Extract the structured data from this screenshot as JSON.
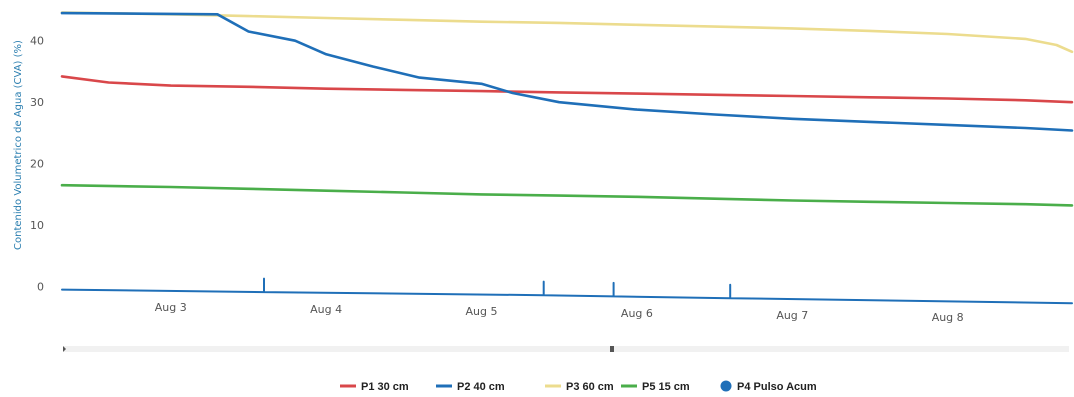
{
  "chart_data": {
    "type": "line",
    "title": "",
    "ylabel": "Contenido Volumetrico de Agua (CVA) (%)",
    "xlabel": "",
    "x_tick_labels": [
      "Aug 3",
      "Aug 4",
      "Aug 5",
      "Aug 6",
      "Aug 7",
      "Aug 8"
    ],
    "x_tick_values": [
      1,
      2,
      3,
      4,
      5,
      6
    ],
    "xlim": [
      0.3,
      6.8
    ],
    "y_tick_labels": [
      "0",
      "10",
      "20",
      "30",
      "40"
    ],
    "y_tick_values": [
      0,
      10,
      20,
      30,
      40
    ],
    "ylim": [
      -3,
      45
    ],
    "grid": false,
    "legend_position": "bottom",
    "series": [
      {
        "name": "P1 30 cm",
        "color": "#d9474a",
        "x": [
          0.3,
          0.6,
          1.0,
          1.5,
          2.0,
          2.5,
          3.0,
          3.5,
          4.0,
          4.5,
          5.0,
          5.5,
          6.0,
          6.5,
          6.8
        ],
        "y": [
          34.2,
          33.2,
          32.7,
          32.5,
          32.2,
          32.0,
          31.8,
          31.6,
          31.4,
          31.2,
          31.0,
          30.8,
          30.6,
          30.3,
          30.0
        ]
      },
      {
        "name": "P2 40 cm",
        "color": "#1f6fb8",
        "x": [
          0.3,
          1.3,
          1.5,
          1.8,
          2.0,
          2.3,
          2.6,
          3.0,
          3.2,
          3.5,
          4.0,
          4.5,
          5.0,
          5.5,
          6.0,
          6.5,
          6.8
        ],
        "y": [
          44.5,
          44.3,
          41.5,
          40.0,
          37.8,
          35.8,
          34.0,
          33.0,
          31.5,
          30.0,
          28.8,
          28.0,
          27.3,
          26.8,
          26.3,
          25.8,
          25.4
        ]
      },
      {
        "name": "P3 60 cm",
        "color": "#ecdc8e",
        "x": [
          0.3,
          1.0,
          1.5,
          2.0,
          2.5,
          3.0,
          3.5,
          4.0,
          4.5,
          5.0,
          5.5,
          6.0,
          6.5,
          6.7,
          6.8
        ],
        "y": [
          44.6,
          44.3,
          44.0,
          43.7,
          43.4,
          43.1,
          42.9,
          42.6,
          42.3,
          42.0,
          41.6,
          41.1,
          40.3,
          39.3,
          38.2
        ]
      },
      {
        "name": "P5 15 cm",
        "color": "#4aae4a",
        "x": [
          0.3,
          1.0,
          1.5,
          2.0,
          2.5,
          3.0,
          3.5,
          4.0,
          4.5,
          5.0,
          5.5,
          6.0,
          6.5,
          6.8
        ],
        "y": [
          16.5,
          16.2,
          15.9,
          15.6,
          15.3,
          15.0,
          14.8,
          14.6,
          14.3,
          14.0,
          13.8,
          13.6,
          13.4,
          13.2
        ]
      },
      {
        "name": "P4 Pulso Acum",
        "color": "#1f6fb8",
        "marker": "dot",
        "x": [
          0.3,
          1.6,
          1.6,
          1.6,
          3.4,
          3.4,
          3.4,
          3.85,
          3.85,
          3.85,
          4.6,
          4.6,
          4.6,
          6.8
        ],
        "y": [
          -0.5,
          -0.9,
          1.3,
          -0.9,
          -1.4,
          0.8,
          -1.4,
          -1.6,
          0.6,
          -1.6,
          -1.9,
          0.3,
          -1.9,
          -2.7
        ]
      }
    ]
  }
}
